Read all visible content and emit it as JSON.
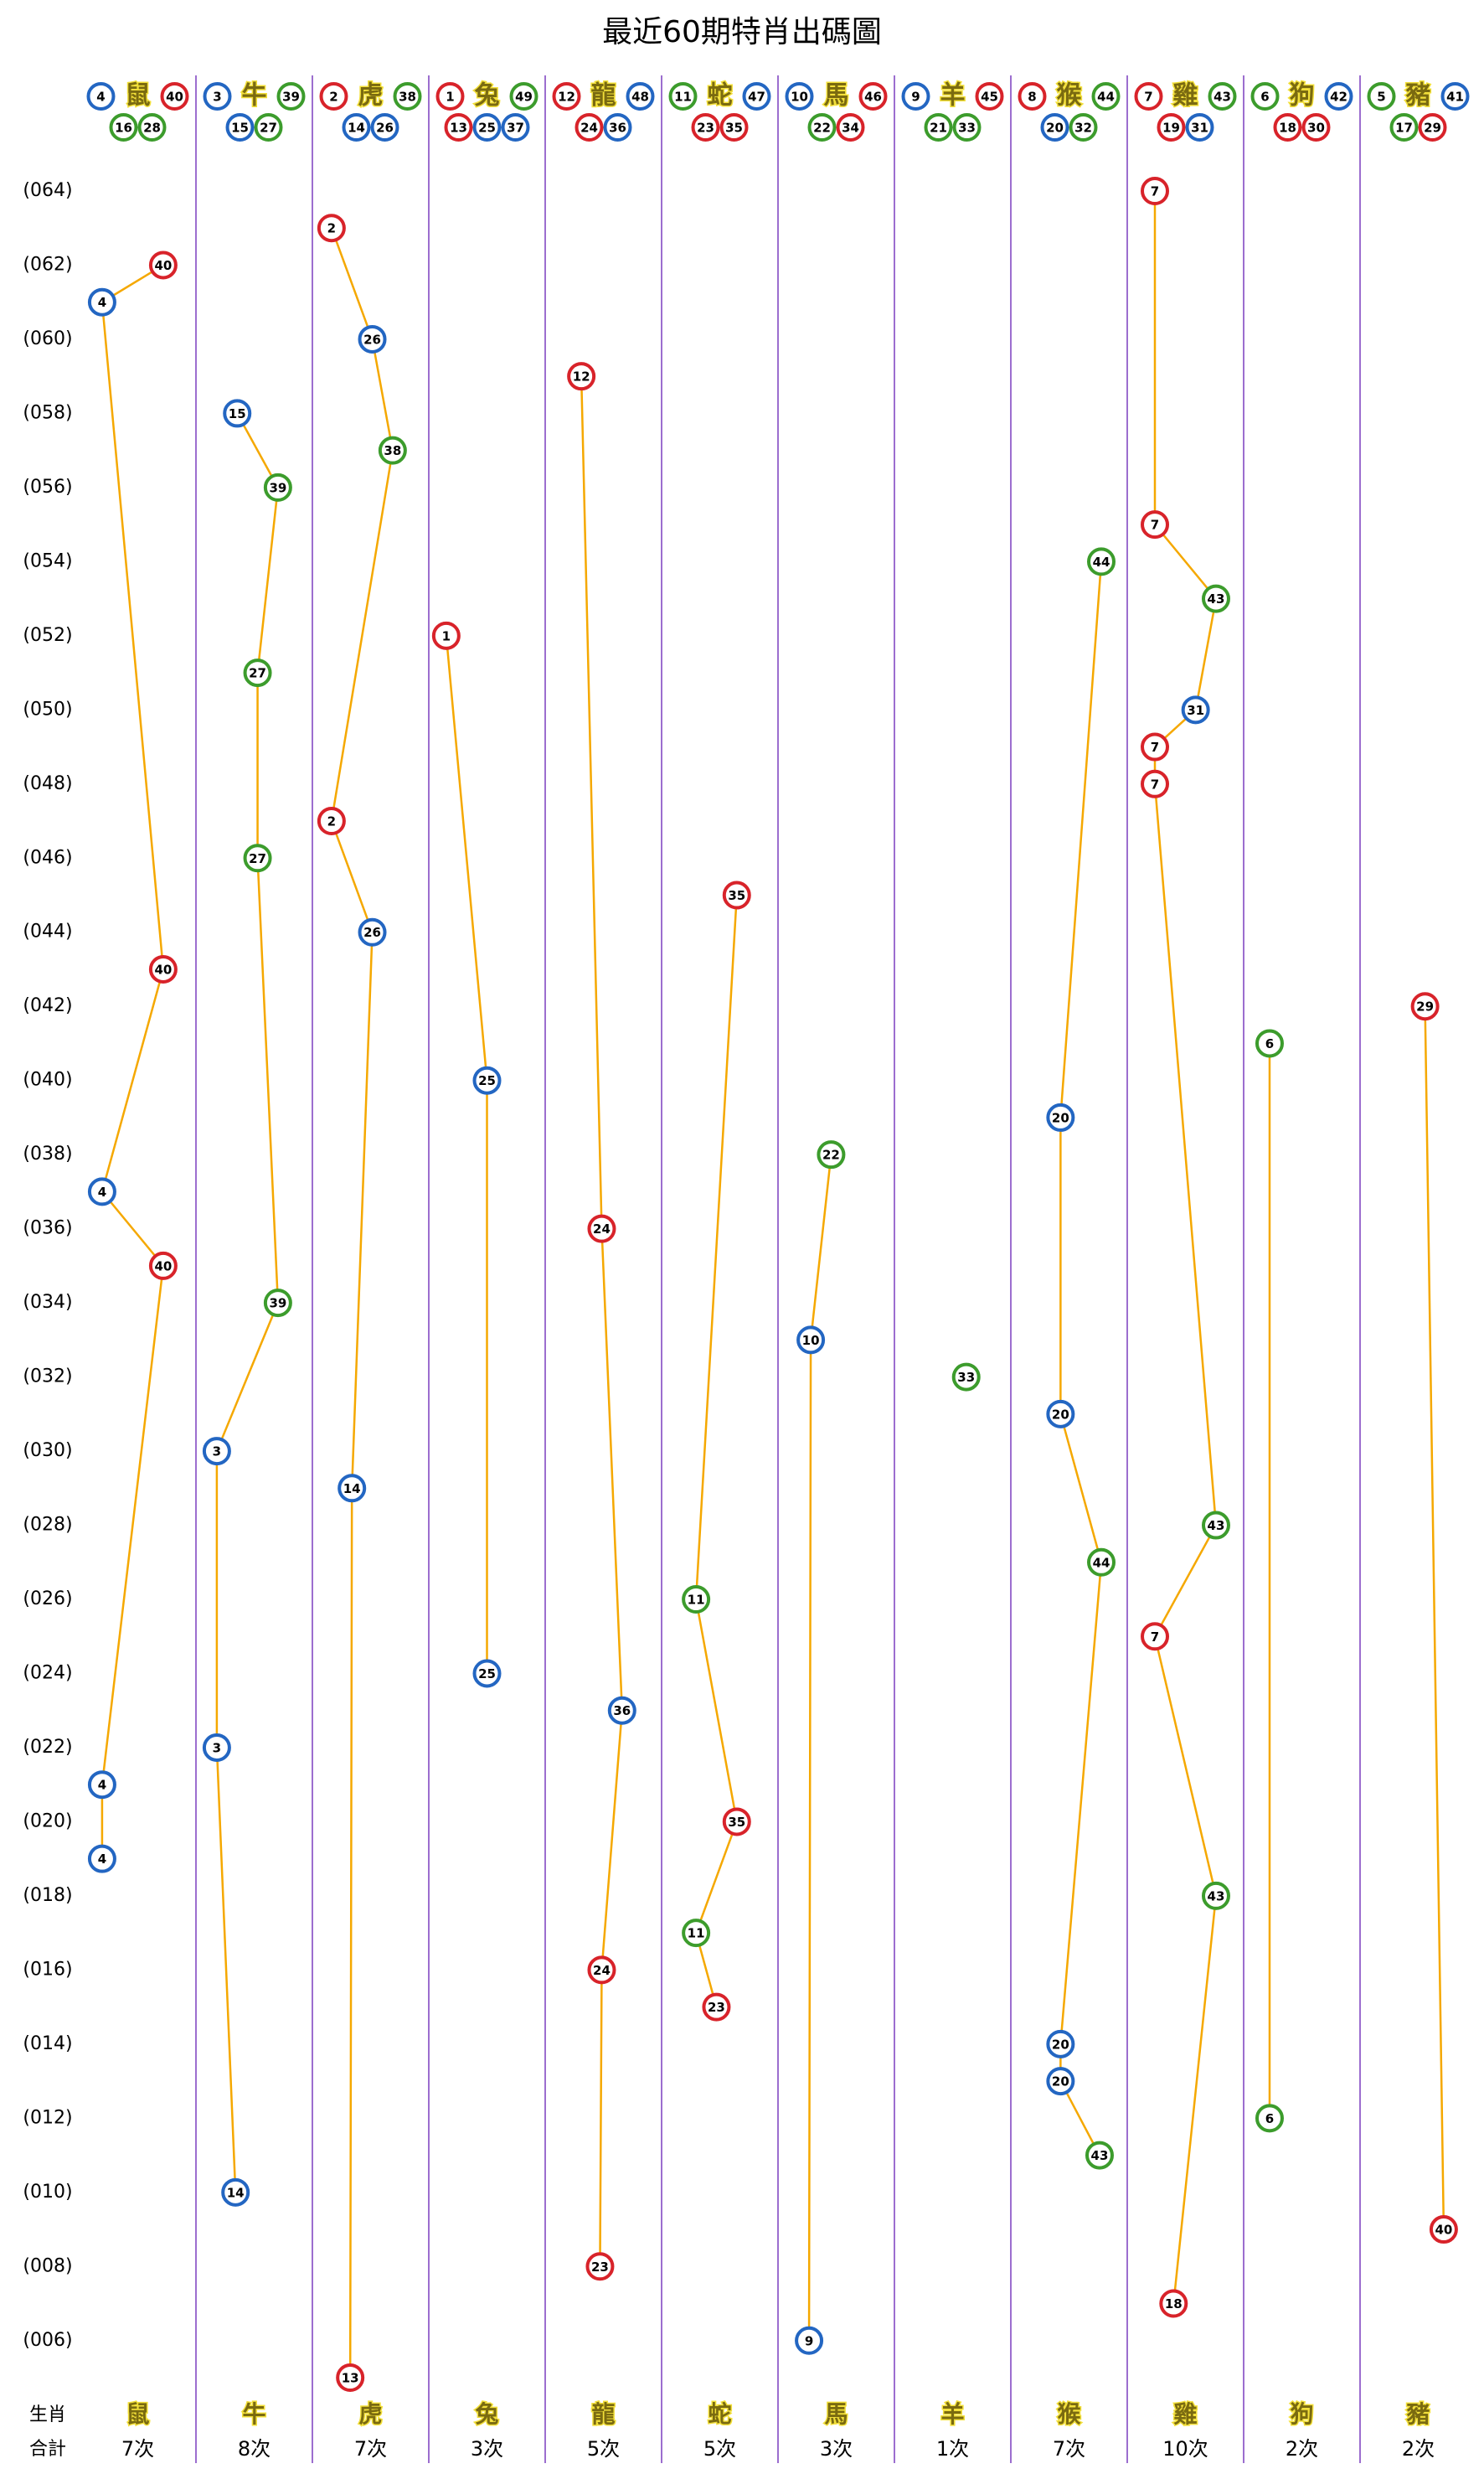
{
  "chart_data": {
    "type": "zodiac-draw",
    "title": "最近60期特肖出碼圖",
    "row_labels": {
      "zodiac": "生肖",
      "total": "合計"
    },
    "ball_colors": {
      "red": "#d8232a",
      "blue": "#2366c2",
      "green": "#3c9c2c"
    },
    "line_color": "#f5a800",
    "divider_color": "#7b3fbf",
    "name_color": "#7a6a10",
    "ylim": [
      5,
      64
    ],
    "yticks": [
      {
        "value": 64,
        "label": "(064)"
      },
      {
        "value": 62,
        "label": "(062)"
      },
      {
        "value": 60,
        "label": "(060)"
      },
      {
        "value": 58,
        "label": "(058)"
      },
      {
        "value": 56,
        "label": "(056)"
      },
      {
        "value": 54,
        "label": "(054)"
      },
      {
        "value": 52,
        "label": "(052)"
      },
      {
        "value": 50,
        "label": "(050)"
      },
      {
        "value": 48,
        "label": "(048)"
      },
      {
        "value": 46,
        "label": "(046)"
      },
      {
        "value": 44,
        "label": "(044)"
      },
      {
        "value": 42,
        "label": "(042)"
      },
      {
        "value": 40,
        "label": "(040)"
      },
      {
        "value": 38,
        "label": "(038)"
      },
      {
        "value": 36,
        "label": "(036)"
      },
      {
        "value": 34,
        "label": "(034)"
      },
      {
        "value": 32,
        "label": "(032)"
      },
      {
        "value": 30,
        "label": "(030)"
      },
      {
        "value": 28,
        "label": "(028)"
      },
      {
        "value": 26,
        "label": "(026)"
      },
      {
        "value": 24,
        "label": "(024)"
      },
      {
        "value": 22,
        "label": "(022)"
      },
      {
        "value": 20,
        "label": "(020)"
      },
      {
        "value": 18,
        "label": "(018)"
      },
      {
        "value": 16,
        "label": "(016)"
      },
      {
        "value": 14,
        "label": "(014)"
      },
      {
        "value": 12,
        "label": "(012)"
      },
      {
        "value": 10,
        "label": "(010)"
      },
      {
        "value": 8,
        "label": "(008)"
      },
      {
        "value": 6,
        "label": "(006)"
      }
    ],
    "zodiacs": [
      {
        "name": "鼠",
        "numbers": [
          {
            "n": 4,
            "color": "blue"
          },
          {
            "n": 40,
            "color": "red"
          },
          {
            "n": 16,
            "color": "green"
          },
          {
            "n": 28,
            "color": "green"
          }
        ],
        "total": "7次",
        "points": [
          {
            "period": 62,
            "number": 40
          },
          {
            "period": 61,
            "number": 4
          },
          {
            "period": 43,
            "number": 40
          },
          {
            "period": 37,
            "number": 4
          },
          {
            "period": 35,
            "number": 40
          },
          {
            "period": 21,
            "number": 4
          },
          {
            "period": 19,
            "number": 4
          }
        ]
      },
      {
        "name": "牛",
        "numbers": [
          {
            "n": 3,
            "color": "blue"
          },
          {
            "n": 39,
            "color": "green"
          },
          {
            "n": 15,
            "color": "blue"
          },
          {
            "n": 27,
            "color": "green"
          }
        ],
        "total": "8次",
        "points": [
          {
            "period": 58,
            "number": 15
          },
          {
            "period": 56,
            "number": 39
          },
          {
            "period": 51,
            "number": 27
          },
          {
            "period": 46,
            "number": 27
          },
          {
            "period": 34,
            "number": 39
          },
          {
            "period": 30,
            "number": 3
          },
          {
            "period": 22,
            "number": 3
          },
          {
            "period": 10,
            "number": 14
          }
        ]
      },
      {
        "name": "虎",
        "numbers": [
          {
            "n": 2,
            "color": "red"
          },
          {
            "n": 38,
            "color": "green"
          },
          {
            "n": 14,
            "color": "blue"
          },
          {
            "n": 26,
            "color": "blue"
          }
        ],
        "total": "7次",
        "points": [
          {
            "period": 63,
            "number": 2
          },
          {
            "period": 60,
            "number": 26
          },
          {
            "period": 57,
            "number": 38
          },
          {
            "period": 47,
            "number": 2
          },
          {
            "period": 44,
            "number": 26
          },
          {
            "period": 29,
            "number": 14
          },
          {
            "period": 5,
            "number": 13
          }
        ]
      },
      {
        "name": "兔",
        "numbers": [
          {
            "n": 1,
            "color": "red"
          },
          {
            "n": 49,
            "color": "green"
          },
          {
            "n": 13,
            "color": "red"
          },
          {
            "n": 25,
            "color": "blue"
          },
          {
            "n": 37,
            "color": "blue"
          }
        ],
        "total": "3次",
        "points": [
          {
            "period": 52,
            "number": 1
          },
          {
            "period": 40,
            "number": 25
          },
          {
            "period": 24,
            "number": 25
          }
        ]
      },
      {
        "name": "龍",
        "numbers": [
          {
            "n": 12,
            "color": "red"
          },
          {
            "n": 48,
            "color": "blue"
          },
          {
            "n": 24,
            "color": "red"
          },
          {
            "n": 36,
            "color": "blue"
          }
        ],
        "total": "5次",
        "points": [
          {
            "period": 59,
            "number": 12
          },
          {
            "period": 36,
            "number": 24
          },
          {
            "period": 23,
            "number": 36
          },
          {
            "period": 16,
            "number": 24
          },
          {
            "period": 8,
            "number": 23
          }
        ]
      },
      {
        "name": "蛇",
        "numbers": [
          {
            "n": 11,
            "color": "green"
          },
          {
            "n": 47,
            "color": "blue"
          },
          {
            "n": 23,
            "color": "red"
          },
          {
            "n": 35,
            "color": "red"
          }
        ],
        "total": "5次",
        "points": [
          {
            "period": 45,
            "number": 35
          },
          {
            "period": 26,
            "number": 11
          },
          {
            "period": 20,
            "number": 35
          },
          {
            "period": 17,
            "number": 11
          },
          {
            "period": 15,
            "number": 23
          }
        ]
      },
      {
        "name": "馬",
        "numbers": [
          {
            "n": 10,
            "color": "blue"
          },
          {
            "n": 46,
            "color": "red"
          },
          {
            "n": 22,
            "color": "green"
          },
          {
            "n": 34,
            "color": "red"
          }
        ],
        "total": "3次",
        "points": [
          {
            "period": 38,
            "number": 22
          },
          {
            "period": 33,
            "number": 10
          },
          {
            "period": 6,
            "number": 9
          }
        ]
      },
      {
        "name": "羊",
        "numbers": [
          {
            "n": 9,
            "color": "blue"
          },
          {
            "n": 45,
            "color": "red"
          },
          {
            "n": 21,
            "color": "green"
          },
          {
            "n": 33,
            "color": "green"
          }
        ],
        "total": "1次",
        "points": [
          {
            "period": 32,
            "number": 33
          }
        ]
      },
      {
        "name": "猴",
        "numbers": [
          {
            "n": 8,
            "color": "red"
          },
          {
            "n": 44,
            "color": "green"
          },
          {
            "n": 20,
            "color": "blue"
          },
          {
            "n": 32,
            "color": "green"
          }
        ],
        "total": "7次",
        "points": [
          {
            "period": 54,
            "number": 44
          },
          {
            "period": 39,
            "number": 20
          },
          {
            "period": 31,
            "number": 20
          },
          {
            "period": 27,
            "number": 44
          },
          {
            "period": 14,
            "number": 20
          },
          {
            "period": 13,
            "number": 20
          },
          {
            "period": 11,
            "number": 43
          }
        ]
      },
      {
        "name": "雞",
        "numbers": [
          {
            "n": 7,
            "color": "red"
          },
          {
            "n": 43,
            "color": "green"
          },
          {
            "n": 19,
            "color": "red"
          },
          {
            "n": 31,
            "color": "blue"
          }
        ],
        "total": "10次",
        "points": [
          {
            "period": 64,
            "number": 7
          },
          {
            "period": 55,
            "number": 7
          },
          {
            "period": 53,
            "number": 43
          },
          {
            "period": 50,
            "number": 31
          },
          {
            "period": 49,
            "number": 7
          },
          {
            "period": 48,
            "number": 7
          },
          {
            "period": 28,
            "number": 43
          },
          {
            "period": 25,
            "number": 7
          },
          {
            "period": 18,
            "number": 43
          },
          {
            "period": 7,
            "number": 18
          }
        ]
      },
      {
        "name": "狗",
        "numbers": [
          {
            "n": 6,
            "color": "green"
          },
          {
            "n": 42,
            "color": "blue"
          },
          {
            "n": 18,
            "color": "red"
          },
          {
            "n": 30,
            "color": "red"
          }
        ],
        "total": "2次",
        "points": [
          {
            "period": 41,
            "number": 6
          },
          {
            "period": 12,
            "number": 6
          }
        ]
      },
      {
        "name": "豬",
        "numbers": [
          {
            "n": 5,
            "color": "green"
          },
          {
            "n": 41,
            "color": "blue"
          },
          {
            "n": 17,
            "color": "green"
          },
          {
            "n": 29,
            "color": "red"
          }
        ],
        "total": "2次",
        "points": [
          {
            "period": 42,
            "number": 29
          },
          {
            "period": 9,
            "number": 40
          }
        ]
      }
    ]
  }
}
